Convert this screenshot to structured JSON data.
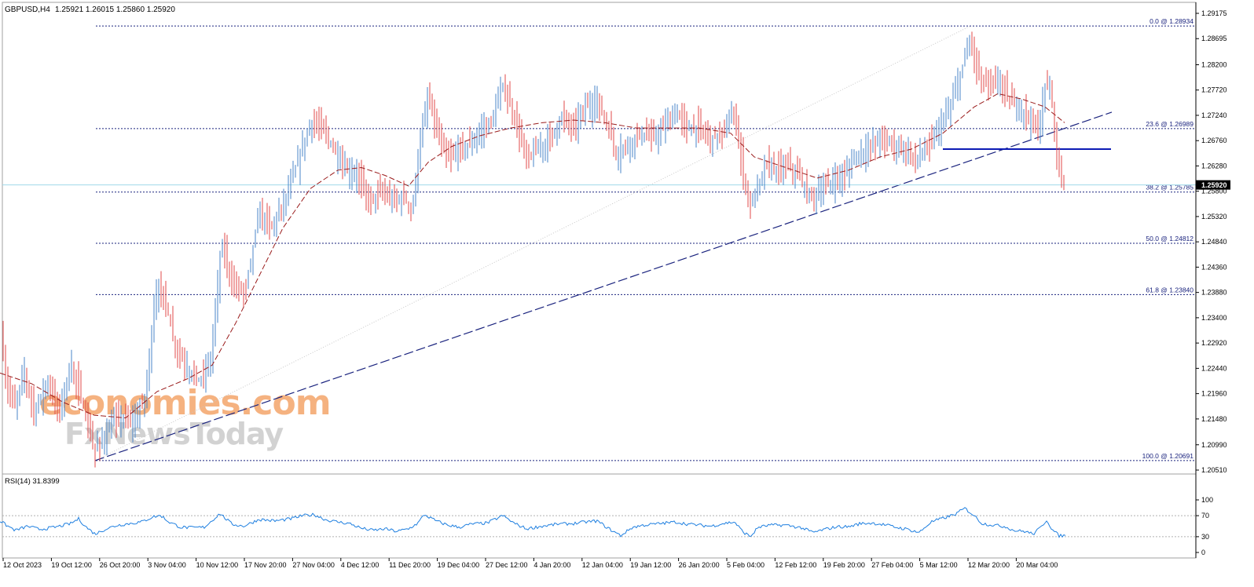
{
  "header": {
    "symbol": "GBPUSD,H4",
    "ohlc": "1.25921 1.26015 1.25860 1.25920"
  },
  "watermark": {
    "line1": "economies.com",
    "line2": "FxNewsToday",
    "color1": "#f4a56a",
    "color2": "#c8c8c8"
  },
  "colors": {
    "bull": "#4a86c8",
    "bear": "#e04848",
    "ma": "#9a1c1c",
    "fib": "#1a237e",
    "trend": "#1a237e",
    "support": "#0d1bb5",
    "price_line": "#9fd8e8",
    "rsi": "#1e7fe0"
  },
  "chart_data": [
    {
      "type": "candlestick",
      "timeframe": "H4",
      "ylim": [
        1.2051,
        1.29175
      ],
      "y_ticks": [
        "1.29175",
        "1.28695",
        "1.28200",
        "1.27720",
        "1.27240",
        "1.26760",
        "1.26280",
        "1.25800",
        "1.25320",
        "1.24840",
        "1.24360",
        "1.23880",
        "1.23400",
        "1.22920",
        "1.22440",
        "1.21960",
        "1.21480",
        "1.20990",
        "1.20510"
      ],
      "x_labels": [
        "12 Oct 2023",
        "19 Oct 12:00",
        "26 Oct 20:00",
        "3 Nov 04:00",
        "10 Nov 12:00",
        "17 Nov 20:00",
        "27 Nov 04:00",
        "4 Dec 12:00",
        "11 Dec 20:00",
        "19 Dec 04:00",
        "27 Dec 12:00",
        "4 Jan 20:00",
        "12 Jan 04:00",
        "19 Jan 12:00",
        "26 Jan 20:00",
        "5 Feb 04:00",
        "12 Feb 12:00",
        "19 Feb 20:00",
        "27 Feb 04:00",
        "5 Mar 12:00",
        "12 Mar 20:00",
        "20 Mar 04:00"
      ],
      "price_path": [
        [
          0,
          1.233
        ],
        [
          8,
          1.221
        ],
        [
          20,
          1.217
        ],
        [
          30,
          1.224
        ],
        [
          44,
          1.216
        ],
        [
          60,
          1.222
        ],
        [
          75,
          1.216
        ],
        [
          90,
          1.225
        ],
        [
          105,
          1.218
        ],
        [
          120,
          1.2085
        ],
        [
          135,
          1.212
        ],
        [
          150,
          1.215
        ],
        [
          170,
          1.214
        ],
        [
          185,
          1.219
        ],
        [
          198,
          1.239
        ],
        [
          210,
          1.238
        ],
        [
          222,
          1.229
        ],
        [
          240,
          1.224
        ],
        [
          255,
          1.222
        ],
        [
          268,
          1.226
        ],
        [
          282,
          1.248
        ],
        [
          297,
          1.24
        ],
        [
          312,
          1.239
        ],
        [
          330,
          1.254
        ],
        [
          345,
          1.251
        ],
        [
          362,
          1.256
        ],
        [
          378,
          1.263
        ],
        [
          395,
          1.271
        ],
        [
          410,
          1.27
        ],
        [
          425,
          1.266
        ],
        [
          440,
          1.262
        ],
        [
          455,
          1.261
        ],
        [
          470,
          1.256
        ],
        [
          485,
          1.258
        ],
        [
          500,
          1.256
        ],
        [
          515,
          1.257
        ],
        [
          525,
          1.254
        ],
        [
          532,
          1.265
        ],
        [
          545,
          1.276
        ],
        [
          558,
          1.268
        ],
        [
          570,
          1.264
        ],
        [
          585,
          1.266
        ],
        [
          600,
          1.267
        ],
        [
          615,
          1.27
        ],
        [
          625,
          1.271
        ],
        [
          640,
          1.278
        ],
        [
          655,
          1.272
        ],
        [
          670,
          1.264
        ],
        [
          685,
          1.266
        ],
        [
          700,
          1.268
        ],
        [
          715,
          1.272
        ],
        [
          730,
          1.27
        ],
        [
          745,
          1.274
        ],
        [
          760,
          1.275
        ],
        [
          772,
          1.271
        ],
        [
          785,
          1.265
        ],
        [
          800,
          1.267
        ],
        [
          815,
          1.269
        ],
        [
          830,
          1.268
        ],
        [
          845,
          1.27
        ],
        [
          860,
          1.273
        ],
        [
          875,
          1.27
        ],
        [
          890,
          1.27
        ],
        [
          905,
          1.268
        ],
        [
          920,
          1.269
        ],
        [
          935,
          1.273
        ],
        [
          945,
          1.262
        ],
        [
          955,
          1.255
        ],
        [
          965,
          1.259
        ],
        [
          975,
          1.263
        ],
        [
          990,
          1.262
        ],
        [
          1005,
          1.263
        ],
        [
          1020,
          1.26
        ],
        [
          1030,
          1.257
        ],
        [
          1045,
          1.258
        ],
        [
          1060,
          1.26
        ],
        [
          1075,
          1.261
        ],
        [
          1090,
          1.265
        ],
        [
          1105,
          1.266
        ],
        [
          1120,
          1.268
        ],
        [
          1135,
          1.267
        ],
        [
          1150,
          1.266
        ],
        [
          1165,
          1.264
        ],
        [
          1180,
          1.266
        ],
        [
          1195,
          1.27
        ],
        [
          1210,
          1.274
        ],
        [
          1222,
          1.28
        ],
        [
          1235,
          1.287
        ],
        [
          1245,
          1.28
        ],
        [
          1258,
          1.278
        ],
        [
          1272,
          1.279
        ],
        [
          1285,
          1.275
        ],
        [
          1298,
          1.274
        ],
        [
          1310,
          1.272
        ],
        [
          1322,
          1.269
        ],
        [
          1330,
          1.278
        ],
        [
          1338,
          1.277
        ],
        [
          1344,
          1.266
        ],
        [
          1352,
          1.259
        ],
        [
          1356,
          1.2592
        ]
      ],
      "moving_average_path": [
        [
          0,
          1.2235
        ],
        [
          40,
          1.2215
        ],
        [
          80,
          1.218
        ],
        [
          120,
          1.2155
        ],
        [
          160,
          1.215
        ],
        [
          200,
          1.22
        ],
        [
          240,
          1.2225
        ],
        [
          270,
          1.225
        ],
        [
          300,
          1.233
        ],
        [
          330,
          1.242
        ],
        [
          360,
          1.251
        ],
        [
          395,
          1.2585
        ],
        [
          430,
          1.262
        ],
        [
          460,
          1.2625
        ],
        [
          490,
          1.261
        ],
        [
          520,
          1.259
        ],
        [
          545,
          1.2635
        ],
        [
          575,
          1.2665
        ],
        [
          610,
          1.2685
        ],
        [
          650,
          1.27
        ],
        [
          690,
          1.271
        ],
        [
          730,
          1.2715
        ],
        [
          770,
          1.271
        ],
        [
          810,
          1.27
        ],
        [
          850,
          1.27
        ],
        [
          890,
          1.27
        ],
        [
          930,
          1.269
        ],
        [
          960,
          1.2645
        ],
        [
          1000,
          1.2625
        ],
        [
          1040,
          1.2605
        ],
        [
          1080,
          1.262
        ],
        [
          1120,
          1.2645
        ],
        [
          1160,
          1.266
        ],
        [
          1200,
          1.269
        ],
        [
          1240,
          1.274
        ],
        [
          1270,
          1.2765
        ],
        [
          1300,
          1.2755
        ],
        [
          1330,
          1.274
        ],
        [
          1355,
          1.271
        ]
      ],
      "fibonacci_levels": [
        {
          "label": "0.0 @ 1.28934",
          "price": 1.28934
        },
        {
          "label": "23.6 @ 1.26989",
          "price": 1.26989
        },
        {
          "label": "38.2 @ 1.25785",
          "price": 1.25785
        },
        {
          "label": "50.0 @ 1.24812",
          "price": 1.24812
        },
        {
          "label": "61.8 @ 1.23840",
          "price": 1.2384
        },
        {
          "label": "100.0 @ 1.20691",
          "price": 1.20691
        }
      ],
      "trend_line": {
        "start": [
          121,
          1.2069
        ],
        "end": [
          1415,
          1.273
        ]
      },
      "fib_diagonal": {
        "start": [
          121,
          1.2069
        ],
        "end": [
          1235,
          1.28934
        ]
      },
      "support_line": {
        "price": 1.266,
        "start": 1200,
        "end": 1414
      },
      "current_price": {
        "price": 1.2592,
        "label": "1.25920"
      }
    },
    {
      "type": "line",
      "title": "RSI(14) 31.8399",
      "ylim": [
        0,
        100
      ],
      "y_ticks": [
        "100",
        "70",
        "30",
        "0"
      ],
      "levels": [
        70,
        30
      ],
      "values_path": [
        [
          0,
          60
        ],
        [
          10,
          50
        ],
        [
          20,
          42
        ],
        [
          35,
          50
        ],
        [
          50,
          44
        ],
        [
          70,
          48
        ],
        [
          90,
          55
        ],
        [
          100,
          64
        ],
        [
          110,
          48
        ],
        [
          121,
          35
        ],
        [
          135,
          45
        ],
        [
          150,
          52
        ],
        [
          165,
          55
        ],
        [
          180,
          58
        ],
        [
          195,
          68
        ],
        [
          205,
          70
        ],
        [
          215,
          58
        ],
        [
          230,
          48
        ],
        [
          245,
          47
        ],
        [
          260,
          48
        ],
        [
          280,
          74
        ],
        [
          295,
          54
        ],
        [
          310,
          50
        ],
        [
          330,
          63
        ],
        [
          350,
          60
        ],
        [
          370,
          64
        ],
        [
          385,
          70
        ],
        [
          400,
          72
        ],
        [
          415,
          62
        ],
        [
          430,
          58
        ],
        [
          445,
          55
        ],
        [
          460,
          46
        ],
        [
          475,
          42
        ],
        [
          490,
          45
        ],
        [
          505,
          40
        ],
        [
          520,
          45
        ],
        [
          532,
          56
        ],
        [
          540,
          72
        ],
        [
          555,
          60
        ],
        [
          570,
          52
        ],
        [
          585,
          48
        ],
        [
          600,
          54
        ],
        [
          620,
          56
        ],
        [
          640,
          70
        ],
        [
          655,
          55
        ],
        [
          670,
          45
        ],
        [
          690,
          50
        ],
        [
          710,
          54
        ],
        [
          730,
          55
        ],
        [
          745,
          58
        ],
        [
          760,
          60
        ],
        [
          775,
          45
        ],
        [
          790,
          32
        ],
        [
          805,
          48
        ],
        [
          820,
          52
        ],
        [
          840,
          55
        ],
        [
          860,
          58
        ],
        [
          875,
          54
        ],
        [
          890,
          52
        ],
        [
          905,
          50
        ],
        [
          920,
          55
        ],
        [
          935,
          58
        ],
        [
          945,
          40
        ],
        [
          955,
          30
        ],
        [
          965,
          48
        ],
        [
          980,
          52
        ],
        [
          1000,
          52
        ],
        [
          1020,
          47
        ],
        [
          1035,
          38
        ],
        [
          1050,
          44
        ],
        [
          1065,
          49
        ],
        [
          1080,
          49
        ],
        [
          1095,
          55
        ],
        [
          1110,
          56
        ],
        [
          1125,
          53
        ],
        [
          1140,
          48
        ],
        [
          1155,
          44
        ],
        [
          1170,
          38
        ],
        [
          1185,
          58
        ],
        [
          1200,
          65
        ],
        [
          1215,
          72
        ],
        [
          1228,
          84
        ],
        [
          1240,
          70
        ],
        [
          1250,
          55
        ],
        [
          1265,
          52
        ],
        [
          1280,
          49
        ],
        [
          1290,
          42
        ],
        [
          1305,
          40
        ],
        [
          1315,
          35
        ],
        [
          1325,
          48
        ],
        [
          1332,
          62
        ],
        [
          1340,
          42
        ],
        [
          1348,
          32
        ],
        [
          1356,
          31.84
        ]
      ]
    }
  ]
}
